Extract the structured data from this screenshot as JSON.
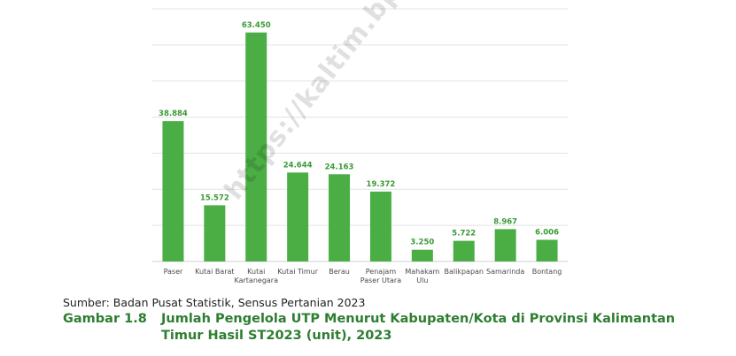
{
  "watermark": "https://kaltim.bps.go.id",
  "source": "Sumber: Badan Pusat Statistik, Sensus Pertanian 2023",
  "caption": {
    "number": "Gambar   1.8",
    "title_line1": "Jumlah Pengelola UTP Menurut Kabupaten/Kota di Provinsi Kalimantan",
    "title_line2": "Timur Hasil ST2023 (unit), 2023"
  },
  "colors": {
    "bar": "#4aae45",
    "label": "#3a9a36",
    "caption": "#2e7d32"
  },
  "chart_data": {
    "type": "bar",
    "categories": [
      [
        "Paser"
      ],
      [
        "Kutai Barat"
      ],
      [
        "Kutai",
        "Kartanegara"
      ],
      [
        "Kutai Timur"
      ],
      [
        "Berau"
      ],
      [
        "Penajam",
        "Paser Utara"
      ],
      [
        "Mahakam",
        "Ulu"
      ],
      [
        "Balikpapan"
      ],
      [
        "Samarinda"
      ],
      [
        "Bontang"
      ]
    ],
    "values": [
      38884,
      15572,
      63450,
      24644,
      24163,
      19372,
      3250,
      5722,
      8967,
      6006
    ],
    "value_labels": [
      "38.884",
      "15.572",
      "63.450",
      "24.644",
      "24.163",
      "19.372",
      "3.250",
      "5.722",
      "8.967",
      "6.006"
    ],
    "ylim": [
      0,
      70000
    ],
    "ygrid_step": 10000,
    "grid": true,
    "axis_labels_shown": false
  }
}
